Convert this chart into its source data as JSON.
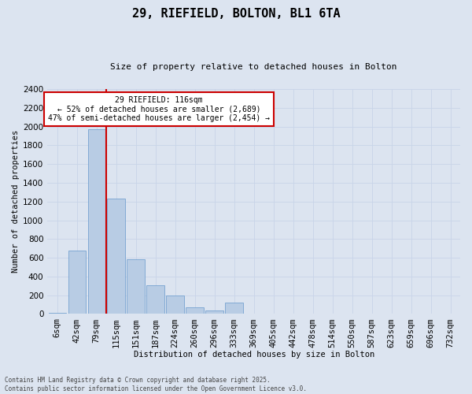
{
  "title1": "29, RIEFIELD, BOLTON, BL1 6TA",
  "title2": "Size of property relative to detached houses in Bolton",
  "xlabel": "Distribution of detached houses by size in Bolton",
  "ylabel": "Number of detached properties",
  "categories": [
    "6sqm",
    "42sqm",
    "79sqm",
    "115sqm",
    "151sqm",
    "187sqm",
    "224sqm",
    "260sqm",
    "296sqm",
    "333sqm",
    "369sqm",
    "405sqm",
    "442sqm",
    "478sqm",
    "514sqm",
    "550sqm",
    "587sqm",
    "623sqm",
    "659sqm",
    "696sqm",
    "732sqm"
  ],
  "values": [
    10,
    680,
    1970,
    1230,
    580,
    310,
    200,
    75,
    40,
    120,
    0,
    0,
    0,
    0,
    0,
    0,
    0,
    0,
    0,
    0,
    0
  ],
  "bar_color": "#b8cce4",
  "bar_edge_color": "#6699cc",
  "vline_color": "#cc0000",
  "annotation_text": "29 RIEFIELD: 116sqm\n← 52% of detached houses are smaller (2,689)\n47% of semi-detached houses are larger (2,454) →",
  "annotation_box_facecolor": "#ffffff",
  "annotation_box_edge": "#cc0000",
  "ylim": [
    0,
    2400
  ],
  "yticks": [
    0,
    200,
    400,
    600,
    800,
    1000,
    1200,
    1400,
    1600,
    1800,
    2000,
    2200,
    2400
  ],
  "grid_color": "#c8d4e8",
  "background_color": "#dce4f0",
  "footnote": "Contains HM Land Registry data © Crown copyright and database right 2025.\nContains public sector information licensed under the Open Government Licence v3.0."
}
